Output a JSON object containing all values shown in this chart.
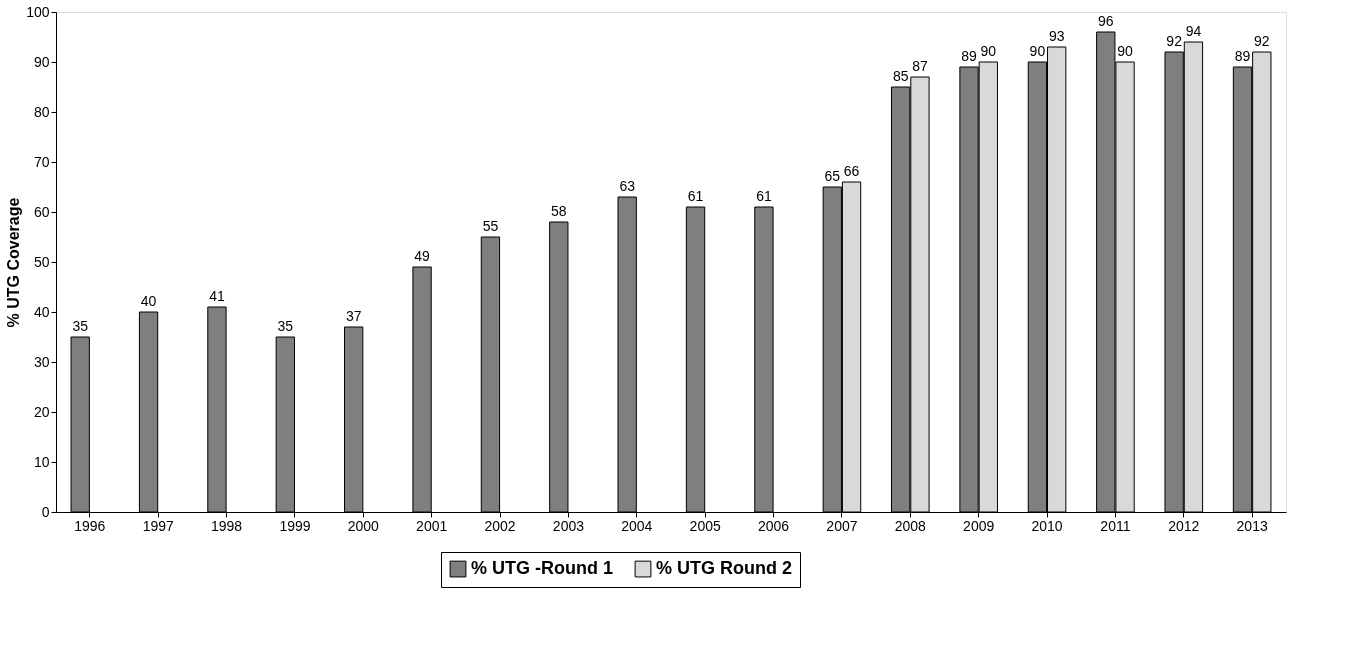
{
  "chart_data": {
    "type": "bar",
    "ylabel": "% UTG Coverage",
    "categories": [
      "1996",
      "1997",
      "1998",
      "1999",
      "2000",
      "2001",
      "2002",
      "2003",
      "2004",
      "2005",
      "2006",
      "2007",
      "2008",
      "2009",
      "2010",
      "2011",
      "2012",
      "2013"
    ],
    "series": [
      {
        "name": "% UTG -Round 1",
        "color": "#7f7f7f",
        "values": [
          35,
          40,
          41,
          35,
          37,
          49,
          55,
          58,
          63,
          61,
          61,
          65,
          85,
          89,
          90,
          96,
          92,
          89
        ]
      },
      {
        "name": "% UTG Round 2",
        "color": "#d9d9d9",
        "values": [
          null,
          null,
          null,
          null,
          null,
          null,
          null,
          null,
          null,
          null,
          null,
          66,
          87,
          90,
          93,
          90,
          94,
          92
        ]
      }
    ],
    "ylim": [
      0,
      100
    ],
    "yticks": [
      0,
      10,
      20,
      30,
      40,
      50,
      60,
      70,
      80,
      90,
      100
    ],
    "grid": false,
    "legend": "bottom",
    "data_labels": true
  }
}
